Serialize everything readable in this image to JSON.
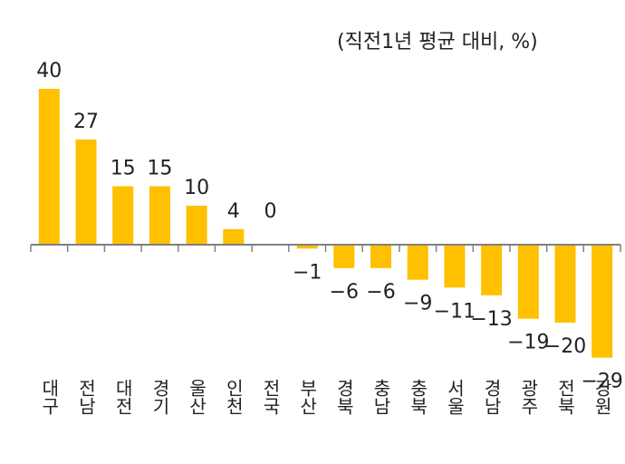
{
  "unit_note": "(직전1년 평균 대비, %)",
  "chart_data": {
    "type": "bar",
    "title": "",
    "xlabel": "",
    "ylabel": "",
    "unit": "(직전1년 평균 대비, %)",
    "categories": [
      "대구",
      "전남",
      "대전",
      "경기",
      "울산",
      "인천",
      "전국",
      "부산",
      "경북",
      "충남",
      "충북",
      "서울",
      "경남",
      "광주",
      "전북",
      "강원"
    ],
    "values": [
      40,
      27,
      15,
      15,
      10,
      4,
      0,
      -1,
      -6,
      -6,
      -9,
      -11,
      -13,
      -19,
      -20,
      -29
    ],
    "value_labels": [
      "40",
      "27",
      "15",
      "15",
      "10",
      "4",
      "0",
      "−1",
      "−6",
      "−6",
      "−9",
      "−11",
      "−13",
      "−19",
      "−20",
      "−29"
    ],
    "ylim": [
      -30,
      40
    ],
    "grid": false,
    "legend": "none",
    "bar_color": "#FFC000",
    "axis_color": "#808080"
  }
}
